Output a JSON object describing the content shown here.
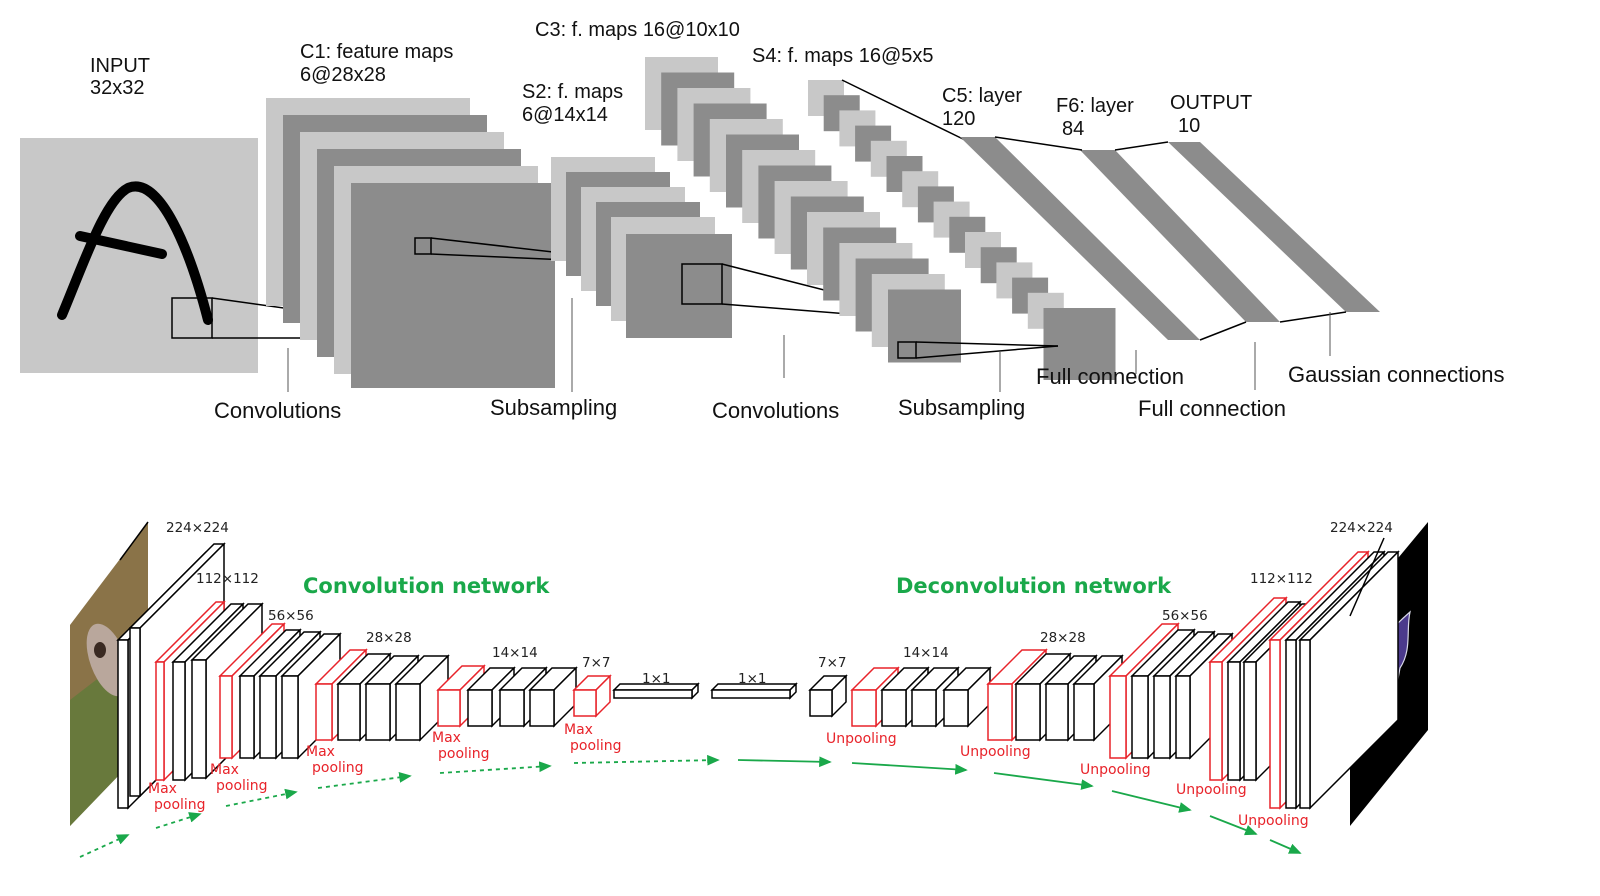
{
  "lenet": {
    "input_title": "INPUT",
    "input_size": "32x32",
    "c1_title": "C1: feature maps",
    "c1_size": "6@28x28",
    "s2_title": "S2: f. maps",
    "s2_size": "6@14x14",
    "c3_label": "C3: f. maps 16@10x10",
    "s4_label": "S4: f. maps 16@5x5",
    "c5_title": "C5: layer",
    "c5_size": "120",
    "f6_title": "F6: layer",
    "f6_size": "84",
    "output_title": "OUTPUT",
    "output_size": "10",
    "op_convolutions_1": "Convolutions",
    "op_subsampling_1": "Subsampling",
    "op_convolutions_2": "Convolutions",
    "op_subsampling_2": "Subsampling",
    "op_full_connection_1": "Full connection",
    "op_full_connection_2": "Full connection",
    "op_gaussian": "Gaussian connections"
  },
  "deconvnet": {
    "conv_network_label": "Convolution network",
    "deconv_network_label": "Deconvolution network",
    "enc_sizes": [
      "224×224",
      "112×112",
      "56×56",
      "28×28",
      "14×14",
      "7×7",
      "1×1"
    ],
    "dec_sizes": [
      "1×1",
      "7×7",
      "14×14",
      "28×28",
      "56×56",
      "112×112",
      "224×224"
    ],
    "max": "Max",
    "pooling": "pooling",
    "unpooling": "Unpooling",
    "colors": {
      "network_label": "#1aa84a",
      "pooling": "#e8232a",
      "arrow": "#1aa84a",
      "segmentation": "#4b3a8c",
      "gray_light": "#c8c8c8",
      "gray_dark": "#8c8c8c"
    }
  }
}
